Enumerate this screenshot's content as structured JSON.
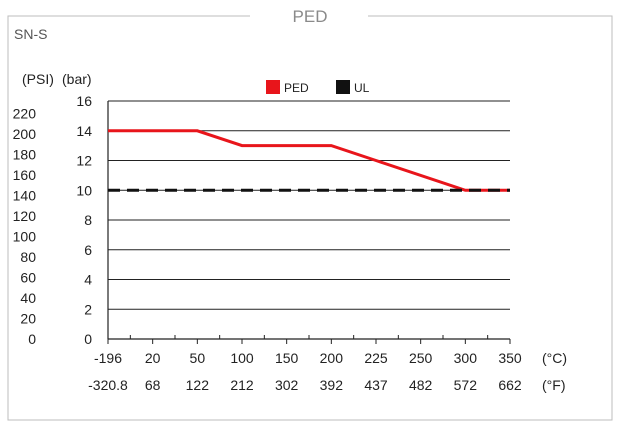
{
  "panel": {
    "title": "PED",
    "subtitle": "SN-S"
  },
  "colors": {
    "ped": "#e8151b",
    "ul": "#111111",
    "frame": "#bdbdbd"
  },
  "chart_data": {
    "type": "line",
    "title": "PED",
    "y_unit_labels": [
      "(PSI)",
      "(bar)"
    ],
    "x_unit_labels": [
      "(°C)",
      "(°F)"
    ],
    "x_ticks_c": [
      "-196",
      "20",
      "50",
      "100",
      "150",
      "200",
      "225",
      "250",
      "300",
      "350"
    ],
    "x_ticks_f": [
      "-320.8",
      "68",
      "122",
      "212",
      "302",
      "392",
      "437",
      "482",
      "572",
      "662"
    ],
    "y_ticks_bar": [
      "16",
      "14",
      "12",
      "10",
      "8",
      "6",
      "4",
      "2",
      "0"
    ],
    "y_ticks_psi": [
      "220",
      "200",
      "180",
      "160",
      "140",
      "120",
      "100",
      "80",
      "60",
      "40",
      "20",
      "0"
    ],
    "ylim_bar": [
      0,
      16
    ],
    "ylim_psi": [
      0,
      232
    ],
    "grid": true,
    "legend": {
      "placement": "top-center",
      "items": [
        "PED",
        "UL"
      ]
    },
    "series": [
      {
        "name": "PED",
        "x_c": [
          -196,
          50,
          100,
          200,
          225,
          300,
          350
        ],
        "y_bar": [
          14,
          14,
          13,
          13,
          12,
          10,
          10
        ]
      },
      {
        "name": "UL",
        "x_c": [
          -196,
          350
        ],
        "y_bar": [
          10,
          10
        ]
      }
    ]
  }
}
